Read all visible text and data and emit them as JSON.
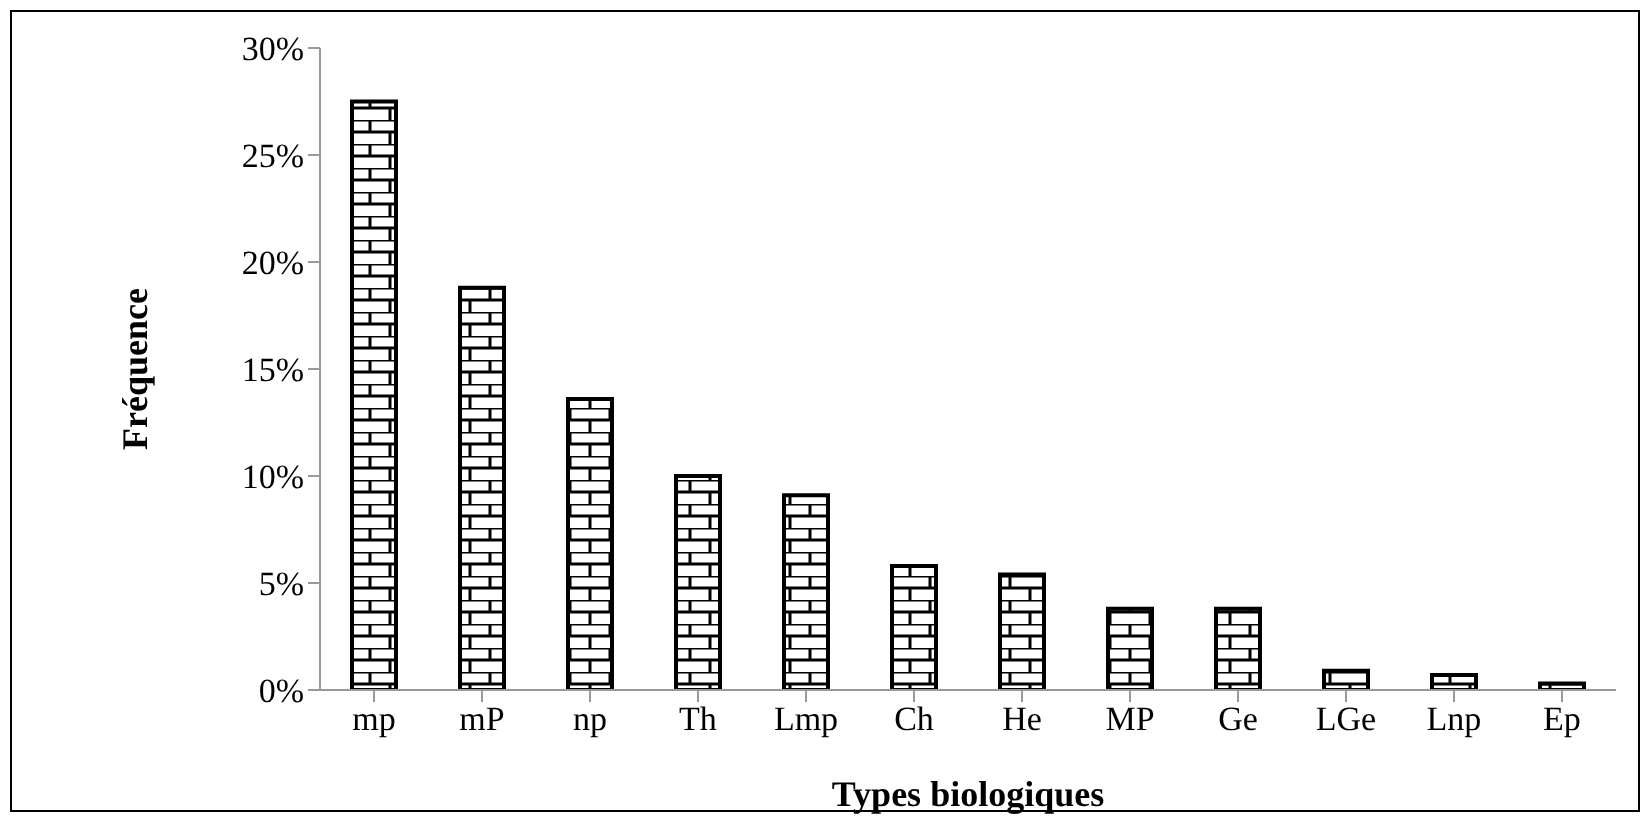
{
  "chart_data": {
    "type": "bar",
    "xlabel": "Types biologiques",
    "ylabel": "Fréquence",
    "categories": [
      "mp",
      "mP",
      "np",
      "Th",
      "Lmp",
      "Ch",
      "He",
      "MP",
      "Ge",
      "LGe",
      "Lnp",
      "Ep"
    ],
    "values": [
      27.5,
      18.8,
      13.6,
      10.0,
      9.1,
      5.8,
      5.4,
      3.8,
      3.8,
      0.9,
      0.7,
      0.3
    ],
    "color": "#000000",
    "ylim": [
      0,
      30
    ],
    "yticks": [
      {
        "value": 0,
        "label": "0%"
      },
      {
        "value": 5,
        "label": "5%"
      },
      {
        "value": 10,
        "label": "10%"
      },
      {
        "value": 15,
        "label": "15%"
      },
      {
        "value": 20,
        "label": "20%"
      },
      {
        "value": 25,
        "label": "25%"
      },
      {
        "value": 30,
        "label": "30%"
      }
    ],
    "grid": false,
    "legend": false
  }
}
